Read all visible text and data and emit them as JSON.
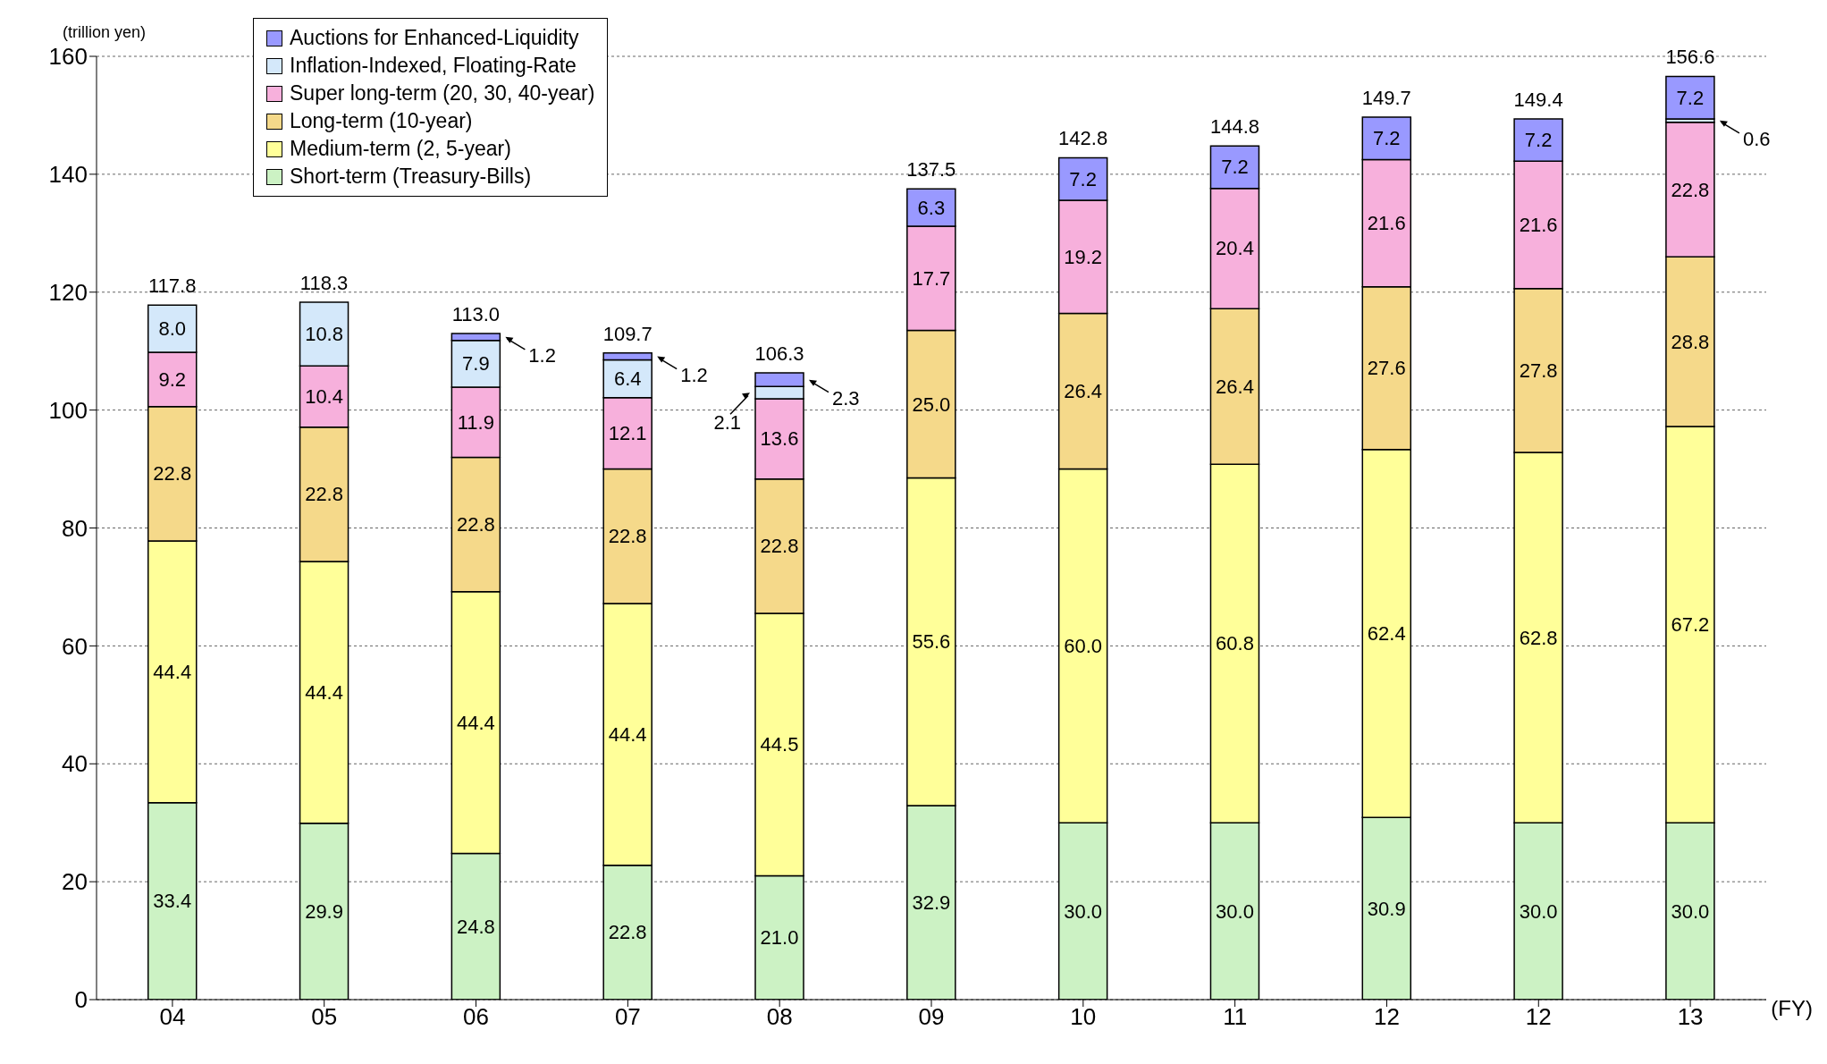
{
  "chart_data": {
    "type": "bar",
    "stacked": true,
    "ylabel": "(trillion yen)",
    "xlabel": "(FY)",
    "categories": [
      "04",
      "05",
      "06",
      "07",
      "08",
      "09",
      "10",
      "11",
      "12",
      "12",
      "13"
    ],
    "series": [
      {
        "name": "Short-term (Treasury-Bills)",
        "color": "#ccf2c4",
        "values": [
          33.4,
          29.9,
          24.8,
          22.8,
          21.0,
          32.9,
          30.0,
          30.0,
          30.9,
          30.0,
          30.0
        ],
        "value_labels": [
          "33.4",
          "29.9",
          "24.8",
          "22.8",
          "21.0",
          "32.9",
          "30.0",
          "30.0",
          "30.9",
          "30.0",
          "30.0"
        ]
      },
      {
        "name": "Medium-term (2, 5-year)",
        "color": "#ffff99",
        "values": [
          44.4,
          44.4,
          44.4,
          44.4,
          44.5,
          55.6,
          60.0,
          60.8,
          62.4,
          62.8,
          67.2
        ],
        "value_labels": [
          "44.4",
          "44.4",
          "44.4",
          "44.4",
          "44.5",
          "55.6",
          "60.0",
          "60.8",
          "62.4",
          "62.8",
          "67.2"
        ]
      },
      {
        "name": "Long-term (10-year)",
        "color": "#f5d98a",
        "values": [
          22.8,
          22.8,
          22.8,
          22.8,
          22.8,
          25.0,
          26.4,
          26.4,
          27.6,
          27.8,
          28.8
        ],
        "value_labels": [
          "22.8",
          "22.8",
          "22.8",
          "22.8",
          "22.8",
          "25.0",
          "26.4",
          "26.4",
          "27.6",
          "27.8",
          "28.8"
        ]
      },
      {
        "name": "Super long-term (20, 30, 40-year)",
        "color": "#f7b0dc",
        "values": [
          9.2,
          10.4,
          11.9,
          12.1,
          13.6,
          17.7,
          19.2,
          20.4,
          21.6,
          21.6,
          22.8
        ],
        "value_labels": [
          "9.2",
          "10.4",
          "11.9",
          "12.1",
          "13.6",
          "17.7",
          "19.2",
          "20.4",
          "21.6",
          "21.6",
          "22.8"
        ]
      },
      {
        "name": "Inflation-Indexed, Floating-Rate",
        "color": "#d4e8fa",
        "values": [
          8.0,
          10.8,
          7.9,
          6.4,
          2.1,
          null,
          null,
          null,
          null,
          null,
          0.6
        ],
        "value_labels": [
          "8.0",
          "10.8",
          "7.9",
          "6.4",
          "2.1",
          null,
          null,
          null,
          null,
          null,
          "0.6"
        ]
      },
      {
        "name": "Auctions for Enhanced-Liquidity",
        "color": "#9999ff",
        "values": [
          null,
          null,
          1.2,
          1.2,
          2.3,
          6.3,
          7.2,
          7.2,
          7.2,
          7.2,
          7.2
        ],
        "value_labels": [
          null,
          null,
          "1.2",
          "1.2",
          "2.3",
          "6.3",
          "7.2",
          "7.2",
          "7.2",
          "7.2",
          "7.2"
        ]
      }
    ],
    "totals": [
      "117.8",
      "118.3",
      "113.0",
      "109.7",
      "106.3",
      "137.5",
      "142.8",
      "144.8",
      "149.7",
      "149.4",
      "156.6"
    ],
    "ylim": [
      0,
      160
    ],
    "yticks": [
      0,
      20,
      40,
      60,
      80,
      100,
      120,
      140,
      160
    ],
    "grid": "y",
    "legend": "top left"
  }
}
